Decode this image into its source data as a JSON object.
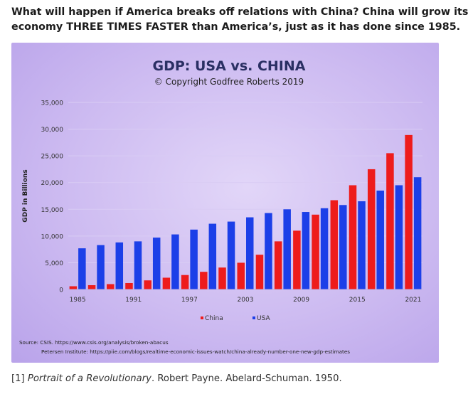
{
  "headline": {
    "line1": "What will happen if America breaks off relations with China? China will grow its",
    "line2": "economy THREE TIMES FASTER than America’s, just as it has done since 1985."
  },
  "footnote": {
    "marker": "[1] ",
    "title": "Portrait of a Revolutionary",
    "rest": ". Robert Payne. Abelard-Schuman. 1950."
  },
  "chart_data": {
    "type": "bar",
    "title": "GDP: USA vs. CHINA",
    "subtitle": "© Copyright Godfree Roberts 2019",
    "xlabel": "",
    "ylabel": "GDP in Billions",
    "ylim": [
      0,
      35000
    ],
    "yticks": [
      "0",
      "5,000",
      "10,000",
      "15,000",
      "20,000",
      "25,000",
      "30,000",
      "35,000"
    ],
    "grid": true,
    "legend_position": "bottom-center",
    "categories": [
      "1985",
      "1987",
      "1989",
      "1991",
      "1993",
      "1995",
      "1997",
      "1999",
      "2001",
      "2003",
      "2005",
      "2007",
      "2009",
      "2011",
      "2013",
      "2015",
      "2017",
      "2019",
      "2021"
    ],
    "xtick_labels": [
      "1985",
      "",
      "",
      "1991",
      "",
      "",
      "1997",
      "",
      "",
      "2003",
      "",
      "",
      "2009",
      "",
      "",
      "2015",
      "",
      "",
      "2021"
    ],
    "series": [
      {
        "name": "China",
        "color": "#ee1c1c",
        "values": [
          600,
          800,
          1000,
          1200,
          1700,
          2200,
          2700,
          3300,
          4100,
          5000,
          6500,
          9000,
          11000,
          14000,
          16700,
          19500,
          22500,
          25500,
          28900
        ]
      },
      {
        "name": "USA",
        "color": "#1c3fe8",
        "values": [
          7700,
          8300,
          8800,
          9000,
          9700,
          10300,
          11200,
          12300,
          12700,
          13500,
          14300,
          15000,
          14500,
          15200,
          15800,
          16500,
          18500,
          19500,
          21000
        ]
      }
    ],
    "source_lines": [
      "Source: CSIS. https://www.csis.org/analysis/broken-abacus",
      "Petersen Institute: https://piie.com/blogs/realtime-economic-issues-watch/china-already-number-one-new-gdp-estimates"
    ]
  }
}
